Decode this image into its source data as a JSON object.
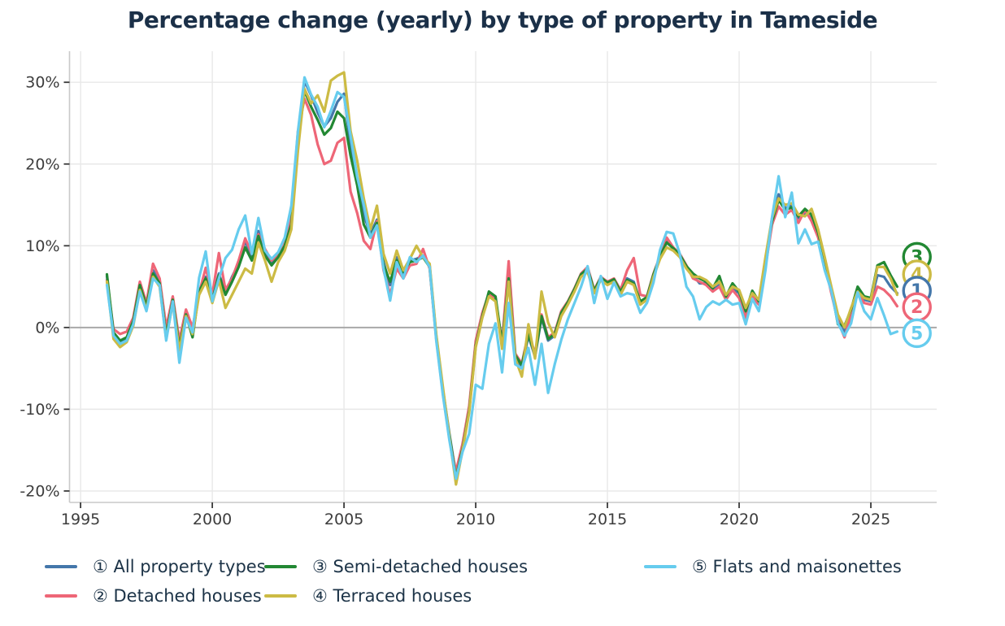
{
  "title": "Percentage change (yearly) by type of property in Tameside",
  "chart_data": {
    "type": "line",
    "title": "Percentage change (yearly) by type of property in Tameside",
    "xlabel": "",
    "ylabel": "",
    "grid": true,
    "legend_position": "bottom",
    "xlim": [
      1994.58,
      2027.5
    ],
    "ylim": [
      -21.4,
      33.8
    ],
    "x_ticks": [
      {
        "v": 1995,
        "label": "1995"
      },
      {
        "v": 2000,
        "label": "2000"
      },
      {
        "v": 2005,
        "label": "2005"
      },
      {
        "v": 2010,
        "label": "2010"
      },
      {
        "v": 2015,
        "label": "2015"
      },
      {
        "v": 2020,
        "label": "2020"
      },
      {
        "v": 2025,
        "label": "2025"
      }
    ],
    "y_ticks": [
      {
        "v": 30,
        "label": "30%"
      },
      {
        "v": 20,
        "label": "20%"
      },
      {
        "v": 10,
        "label": "10%"
      },
      {
        "v": 0,
        "label": "0%"
      },
      {
        "v": -10,
        "label": "-10%"
      },
      {
        "v": -20,
        "label": "-20%"
      }
    ],
    "x_start": 1996.0,
    "x_step": 0.25,
    "end_marker_x": 2026.75,
    "series": [
      {
        "name": "① All property types",
        "number": "1",
        "color": "#4477AA",
        "end_label_value": 4.5,
        "values": [
          6.3,
          -0.8,
          -1.8,
          -1.3,
          0.5,
          5.0,
          2.5,
          7.0,
          5.5,
          -0.8,
          3.5,
          -2.2,
          1.8,
          -0.5,
          4.5,
          6.2,
          3.6,
          6.6,
          4.2,
          6.2,
          7.8,
          10.6,
          8.6,
          11.8,
          9.2,
          7.8,
          8.8,
          10.2,
          13.0,
          23.0,
          30.2,
          28.4,
          26.3,
          24.6,
          25.6,
          27.6,
          28.6,
          22.2,
          18.0,
          13.8,
          11.4,
          13.2,
          8.0,
          5.2,
          8.6,
          6.6,
          8.2,
          8.4,
          8.8,
          7.6,
          -1.0,
          -7.5,
          -13.0,
          -18.0,
          -14.6,
          -10.0,
          -2.0,
          1.6,
          4.0,
          3.6,
          -2.2,
          6.2,
          -3.6,
          -4.8,
          -1.0,
          -3.6,
          1.2,
          -1.6,
          -1.0,
          1.6,
          3.0,
          4.6,
          6.4,
          7.0,
          4.4,
          6.0,
          5.4,
          5.8,
          4.2,
          6.0,
          5.6,
          3.0,
          3.6,
          6.4,
          8.6,
          10.6,
          9.6,
          8.8,
          7.4,
          6.4,
          5.4,
          5.4,
          4.6,
          5.2,
          3.6,
          4.8,
          4.2,
          1.8,
          4.0,
          3.0,
          8.2,
          13.2,
          16.3,
          14.6,
          14.9,
          13.4,
          14.0,
          13.4,
          11.4,
          8.2,
          4.6,
          1.0,
          -0.6,
          2.0,
          4.6,
          3.4,
          3.2,
          6.4,
          6.2,
          5.0,
          4.2
        ]
      },
      {
        "name": "② Detached houses",
        "number": "2",
        "color": "#EE6677",
        "end_label_value": 2.5,
        "values": [
          5.8,
          -0.2,
          -0.8,
          -0.5,
          1.2,
          5.6,
          3.0,
          7.8,
          6.0,
          0.0,
          3.8,
          -1.6,
          2.2,
          0.0,
          4.2,
          7.3,
          4.0,
          9.1,
          4.6,
          6.0,
          8.2,
          10.9,
          9.0,
          11.4,
          9.6,
          8.2,
          9.0,
          10.6,
          13.6,
          24.0,
          28.0,
          26.0,
          22.4,
          20.0,
          20.4,
          22.6,
          23.2,
          16.6,
          14.0,
          10.6,
          9.6,
          13.0,
          7.0,
          4.0,
          7.2,
          6.0,
          7.6,
          7.8,
          9.6,
          7.2,
          -1.4,
          -8.0,
          -13.6,
          -17.6,
          -14.2,
          -9.6,
          -1.6,
          1.8,
          4.2,
          3.4,
          -1.8,
          8.1,
          -3.2,
          -4.4,
          -0.6,
          -3.2,
          1.6,
          -1.2,
          -0.6,
          2.0,
          3.2,
          4.8,
          6.6,
          7.4,
          4.6,
          6.2,
          5.6,
          6.0,
          4.6,
          7.0,
          8.5,
          4.0,
          3.8,
          6.6,
          8.8,
          11.0,
          9.8,
          9.0,
          7.6,
          6.0,
          5.6,
          5.2,
          4.4,
          5.0,
          3.4,
          4.6,
          3.6,
          1.2,
          3.8,
          2.8,
          7.4,
          12.6,
          14.8,
          13.8,
          14.4,
          12.8,
          14.4,
          13.0,
          11.0,
          7.8,
          4.2,
          0.8,
          -1.2,
          1.6,
          4.2,
          3.0,
          2.8,
          5.0,
          4.6,
          3.8,
          2.6
        ]
      },
      {
        "name": "③ Semi-detached houses",
        "number": "3",
        "color": "#228833",
        "end_label_value": 8.65,
        "values": [
          6.5,
          -0.6,
          -1.6,
          -1.2,
          0.8,
          5.2,
          2.6,
          6.6,
          5.4,
          -1.0,
          3.4,
          -2.4,
          1.6,
          -1.2,
          4.4,
          6.0,
          3.4,
          6.4,
          4.0,
          5.6,
          7.4,
          9.8,
          8.2,
          11.2,
          8.8,
          7.6,
          8.6,
          10.0,
          12.6,
          22.4,
          29.0,
          27.0,
          25.4,
          23.6,
          24.4,
          26.4,
          25.6,
          21.0,
          17.4,
          12.6,
          11.0,
          12.8,
          7.6,
          5.6,
          8.2,
          6.8,
          8.0,
          8.2,
          8.6,
          7.4,
          -1.2,
          -7.8,
          -13.2,
          -18.4,
          -14.8,
          -10.2,
          -2.2,
          1.4,
          4.4,
          3.8,
          -2.0,
          6.0,
          -3.4,
          -4.6,
          -0.8,
          -3.4,
          1.4,
          -1.4,
          -0.8,
          1.8,
          3.1,
          4.7,
          6.5,
          7.2,
          4.5,
          6.1,
          5.5,
          5.9,
          4.4,
          5.8,
          5.4,
          3.2,
          3.7,
          6.5,
          8.7,
          10.4,
          9.7,
          8.9,
          7.5,
          6.6,
          6.0,
          5.6,
          4.8,
          6.3,
          3.8,
          5.4,
          4.4,
          2.0,
          4.5,
          3.2,
          8.4,
          13.0,
          15.6,
          14.4,
          14.7,
          13.6,
          14.5,
          13.8,
          11.6,
          8.4,
          4.8,
          0.4,
          0.2,
          2.2,
          5.0,
          3.8,
          3.6,
          7.6,
          8.0,
          6.4,
          5.0
        ]
      },
      {
        "name": "④ Terraced houses",
        "number": "4",
        "color": "#CCBB44",
        "end_label_value": 6.5,
        "values": [
          5.6,
          -1.4,
          -2.4,
          -1.8,
          0.2,
          4.6,
          2.2,
          6.2,
          5.0,
          -1.4,
          3.0,
          -2.8,
          1.4,
          -0.8,
          4.0,
          5.6,
          3.0,
          5.8,
          2.4,
          4.0,
          5.6,
          7.2,
          6.6,
          10.4,
          8.2,
          5.6,
          8.0,
          9.4,
          12.0,
          21.6,
          29.2,
          27.4,
          28.4,
          26.4,
          30.2,
          30.8,
          31.2,
          24.0,
          20.4,
          15.8,
          12.0,
          14.9,
          9.0,
          6.6,
          9.4,
          7.0,
          8.4,
          10.0,
          8.6,
          7.8,
          -0.8,
          -7.2,
          -13.4,
          -19.2,
          -15.0,
          -10.4,
          -2.4,
          1.2,
          3.8,
          3.2,
          -2.6,
          5.6,
          -3.8,
          -6.0,
          0.4,
          -3.8,
          4.4,
          0.6,
          -1.2,
          1.4,
          2.8,
          4.4,
          6.2,
          6.8,
          4.2,
          5.8,
          5.2,
          5.6,
          4.0,
          5.6,
          5.2,
          2.8,
          3.4,
          6.2,
          8.4,
          9.8,
          9.4,
          8.6,
          7.2,
          6.2,
          6.2,
          5.8,
          5.0,
          5.6,
          4.0,
          5.0,
          4.6,
          2.4,
          4.2,
          3.4,
          8.6,
          13.4,
          15.8,
          15.0,
          15.2,
          13.8,
          13.6,
          14.5,
          12.0,
          8.6,
          5.0,
          1.6,
          0.0,
          2.4,
          4.4,
          3.6,
          3.4,
          7.4,
          7.4,
          6.0,
          4.0
        ]
      },
      {
        "name": "⑤ Flats and maisonettes",
        "number": "5",
        "color": "#66CCEE",
        "end_label_value": -0.7,
        "values": [
          5.2,
          -1.0,
          -2.0,
          -1.6,
          0.4,
          4.4,
          2.0,
          6.0,
          5.2,
          -1.6,
          3.2,
          -4.3,
          1.2,
          -0.6,
          6.1,
          9.3,
          3.2,
          6.0,
          8.5,
          9.5,
          12.0,
          13.7,
          9.0,
          13.4,
          9.4,
          8.4,
          9.2,
          11.0,
          14.9,
          24.0,
          30.6,
          28.5,
          27.0,
          24.5,
          26.5,
          28.8,
          28.2,
          23.4,
          18.4,
          15.0,
          11.0,
          12.5,
          7.2,
          3.3,
          8.0,
          6.0,
          8.6,
          8.0,
          8.8,
          7.4,
          -1.6,
          -8.2,
          -13.8,
          -18.5,
          -15.2,
          -13.0,
          -7.0,
          -7.5,
          -2.0,
          0.5,
          -5.5,
          3.0,
          -4.5,
          -5.0,
          -2.5,
          -7.0,
          -2.0,
          -8.0,
          -4.5,
          -1.5,
          1.0,
          3.0,
          5.0,
          7.5,
          3.0,
          6.3,
          3.5,
          5.5,
          3.8,
          4.2,
          4.0,
          1.8,
          3.0,
          5.5,
          9.5,
          11.7,
          11.5,
          9.0,
          5.0,
          3.8,
          1.0,
          2.5,
          3.2,
          2.8,
          3.4,
          2.8,
          3.0,
          0.4,
          3.5,
          2.0,
          7.0,
          13.5,
          18.5,
          13.5,
          16.5,
          10.3,
          12.0,
          10.2,
          10.5,
          7.0,
          4.5,
          0.5,
          -1.0,
          0.5,
          4.3,
          2.0,
          1.0,
          3.6,
          1.5,
          -0.8,
          -0.5
        ]
      }
    ],
    "style": {
      "grid_color": "#e8e8e8",
      "zero_line_color": "#a8a8a8",
      "spine_color": "#c9c9c9",
      "tick_color": "#3a3a3a",
      "tick_label_color": "#3d3d3d",
      "line_width": 3.2
    }
  }
}
